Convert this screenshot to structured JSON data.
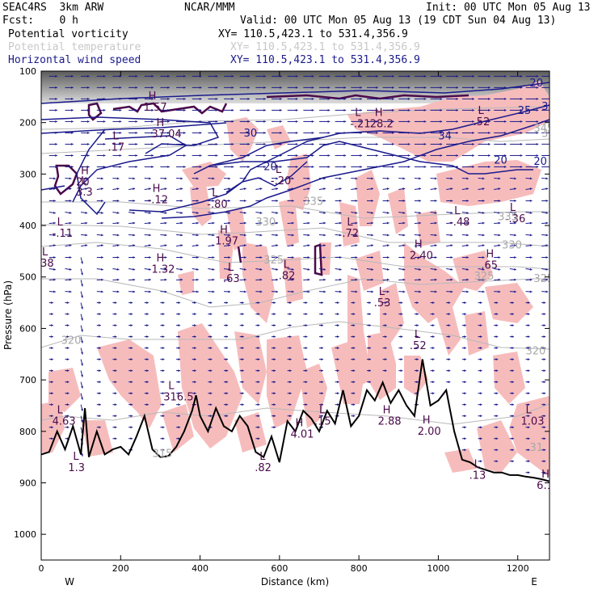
{
  "header": {
    "model": "SEAC4RS  3km ARW",
    "center": "NCAR/MMM",
    "init": "Init: 00 UTC Mon 05 Aug 13",
    "fcst": "Fcst:    0 h",
    "valid": "Valid: 00 UTC Mon 05 Aug 13 (19 CDT Sun 04 Aug 13)",
    "fields": [
      {
        "name": "Potential vorticity",
        "xy": "XY= 110.5,423.1 to 531.4,356.9",
        "color": "#000000"
      },
      {
        "name": "Potential temperature",
        "xy": "XY= 110.5,423.1 to 531.4,356.9",
        "color": "#c8c8c8"
      },
      {
        "name": "Horizontal wind speed",
        "xy": "XY= 110.5,423.1 to 531.4,356.9",
        "color": "#1a1a8c"
      }
    ]
  },
  "chart_data": {
    "type": "cross-section",
    "xlabel": "Distance (km)",
    "ylabel": "Pressure (hPa)",
    "x_ticks": [
      0,
      200,
      400,
      600,
      800,
      1000,
      1200
    ],
    "y_ticks": [
      100,
      200,
      300,
      400,
      500,
      600,
      700,
      800,
      900,
      1000
    ],
    "xlim": [
      0,
      1280
    ],
    "ylim": [
      100,
      1050
    ],
    "y_inverted": true,
    "west_label": "W",
    "east_label": "E",
    "pv_fill_color": "#f6bcbc",
    "wind_contour_color": "#1a1a8c",
    "theta_contour_color": "#b0b0b0",
    "terrain": {
      "x": [
        0,
        20,
        40,
        60,
        80,
        100,
        110,
        120,
        140,
        160,
        180,
        200,
        220,
        240,
        260,
        280,
        300,
        320,
        340,
        360,
        380,
        390,
        400,
        420,
        440,
        460,
        480,
        500,
        520,
        540,
        560,
        580,
        600,
        620,
        640,
        660,
        680,
        700,
        720,
        740,
        760,
        780,
        800,
        820,
        840,
        860,
        880,
        900,
        920,
        940,
        960,
        980,
        1000,
        1020,
        1040,
        1060,
        1080,
        1100,
        1120,
        1140,
        1160,
        1180,
        1200,
        1220,
        1240,
        1260,
        1280
      ],
      "p": [
        845,
        840,
        800,
        835,
        790,
        845,
        755,
        850,
        800,
        845,
        835,
        830,
        845,
        810,
        770,
        835,
        850,
        848,
        830,
        800,
        760,
        730,
        770,
        800,
        755,
        790,
        800,
        770,
        790,
        840,
        850,
        810,
        860,
        780,
        800,
        760,
        775,
        800,
        760,
        785,
        720,
        790,
        770,
        720,
        740,
        705,
        745,
        720,
        750,
        770,
        660,
        750,
        740,
        720,
        800,
        855,
        860,
        870,
        875,
        880,
        880,
        885,
        885,
        888,
        890,
        893,
        897
      ]
    },
    "pv_labels": [
      {
        "kind": "H",
        "x": 270,
        "p": 155,
        "value": "1.57"
      },
      {
        "kind": "H",
        "x": 290,
        "p": 207,
        "value": "37.04"
      },
      {
        "kind": "L",
        "x": 180,
        "p": 233,
        "value": ".17"
      },
      {
        "kind": "H",
        "x": 100,
        "p": 300,
        "value": "20"
      },
      {
        "kind": "L",
        "x": 100,
        "p": 320,
        "value": "3.3"
      },
      {
        "kind": "H",
        "x": 280,
        "p": 335,
        "value": "-.12"
      },
      {
        "kind": "L",
        "x": 40,
        "p": 400,
        "value": "-.11"
      },
      {
        "kind": "L",
        "x": 430,
        "p": 343,
        "value": "-.80"
      },
      {
        "kind": "H",
        "x": 450,
        "p": 415,
        "value": "1.97"
      },
      {
        "kind": "H",
        "x": 290,
        "p": 470,
        "value": "1.32"
      },
      {
        "kind": "L",
        "x": 470,
        "p": 488,
        "value": ".63"
      },
      {
        "kind": "L",
        "x": 610,
        "p": 482,
        "value": ".82"
      },
      {
        "kind": "L",
        "x": 770,
        "p": 400,
        "value": ".72"
      },
      {
        "kind": "H",
        "x": 940,
        "p": 443,
        "value": "2.40"
      },
      {
        "kind": "H",
        "x": 1120,
        "p": 462,
        "value": ".65"
      },
      {
        "kind": "L",
        "x": 850,
        "p": 535,
        "value": ".53"
      },
      {
        "kind": "L",
        "x": 940,
        "p": 618,
        "value": ".52"
      },
      {
        "kind": "L",
        "x": 790,
        "p": 187,
        "value": "-.21"
      },
      {
        "kind": "H",
        "x": 840,
        "p": 187,
        "value": "28.2"
      },
      {
        "kind": "L",
        "x": 1040,
        "p": 378,
        "value": "-.48"
      },
      {
        "kind": "L",
        "x": 1180,
        "p": 372,
        "value": "-.36"
      },
      {
        "kind": "L",
        "x": 1100,
        "p": 183,
        "value": ".52"
      },
      {
        "kind": "L",
        "x": 590,
        "p": 298,
        "value": "-.20"
      },
      {
        "kind": "L",
        "x": 2,
        "p": 458,
        "value": ".38"
      },
      {
        "kind": "L",
        "x": 40,
        "p": 765,
        "value": "4.63"
      },
      {
        "kind": "H",
        "x": 640,
        "p": 790,
        "value": "4.01"
      },
      {
        "kind": "L",
        "x": 700,
        "p": 765,
        "value": ".15"
      },
      {
        "kind": "H",
        "x": 860,
        "p": 765,
        "value": "2.88"
      },
      {
        "kind": "H",
        "x": 960,
        "p": 785,
        "value": "2.00"
      },
      {
        "kind": "L",
        "x": 1220,
        "p": 765,
        "value": "1.03"
      },
      {
        "kind": "L",
        "x": 1090,
        "p": 870,
        "value": ".13"
      },
      {
        "kind": "H",
        "x": 1260,
        "p": 890,
        "value": "6.1"
      },
      {
        "kind": "L",
        "x": 80,
        "p": 855,
        "value": "1.3"
      },
      {
        "kind": "L",
        "x": 550,
        "p": 855,
        "value": ".82"
      },
      {
        "kind": "L",
        "x": 320,
        "p": 718,
        "value": "316.5"
      }
    ],
    "theta_labels": [
      {
        "x": 660,
        "p": 360,
        "value": "335"
      },
      {
        "x": 540,
        "p": 400,
        "value": "330"
      },
      {
        "x": 560,
        "p": 474,
        "value": "325"
      },
      {
        "x": 1150,
        "p": 390,
        "value": "335"
      },
      {
        "x": 1160,
        "p": 445,
        "value": "330"
      },
      {
        "x": 1090,
        "p": 505,
        "value": "325"
      },
      {
        "x": 1240,
        "p": 510,
        "value": "325"
      },
      {
        "x": 1220,
        "p": 650,
        "value": "320"
      },
      {
        "x": 50,
        "p": 630,
        "value": "320"
      },
      {
        "x": 280,
        "p": 850,
        "value": "315"
      },
      {
        "x": 1240,
        "p": 218,
        "value": "345"
      },
      {
        "x": 1260,
        "p": 228,
        "value": "350"
      },
      {
        "x": 1230,
        "p": 838,
        "value": "31"
      }
    ],
    "wind_labels": [
      {
        "x": 1230,
        "p": 130,
        "value": "20"
      },
      {
        "x": 1200,
        "p": 183,
        "value": "25"
      },
      {
        "x": 1260,
        "p": 175,
        "value": "30"
      },
      {
        "x": 1000,
        "p": 233,
        "value": "34"
      },
      {
        "x": 1140,
        "p": 280,
        "value": "20"
      },
      {
        "x": 1240,
        "p": 282,
        "value": "20"
      },
      {
        "x": 510,
        "p": 227,
        "value": "30"
      },
      {
        "x": 560,
        "p": 292,
        "value": "20"
      }
    ]
  }
}
